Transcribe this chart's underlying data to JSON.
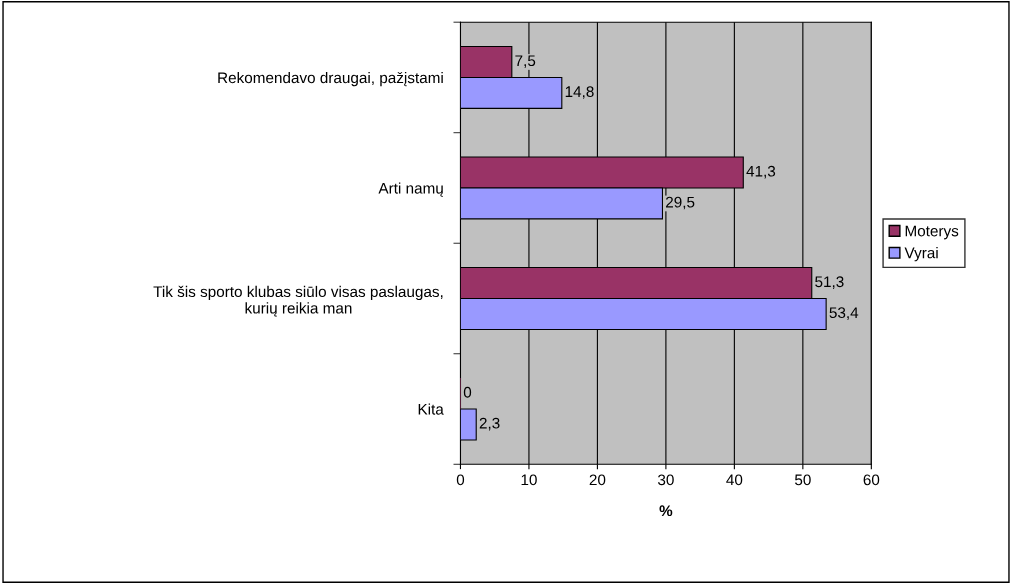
{
  "chart_data": {
    "type": "bar",
    "orientation": "horizontal",
    "xlabel": "%",
    "categories": [
      "Rekomendavo draugai, pažįstami",
      "Arti namų",
      "Tik šis sporto klubas siūlo visas paslaugas,\nkurių reikia man",
      "Kita"
    ],
    "series": [
      {
        "name": "Moterys",
        "color": "#993366",
        "values": [
          7.5,
          41.3,
          51.3,
          0
        ],
        "value_labels": [
          "7,5",
          "41,3",
          "51,3",
          "0"
        ]
      },
      {
        "name": "Vyrai",
        "color": "#9999ff",
        "values": [
          14.8,
          29.5,
          53.4,
          2.3
        ],
        "value_labels": [
          "14,8",
          "29,5",
          "53,4",
          "2,3"
        ]
      }
    ],
    "xlim": [
      0,
      60
    ],
    "xticks": [
      0,
      10,
      20,
      30,
      40,
      50,
      60
    ],
    "grid": "x",
    "legend": "right"
  }
}
